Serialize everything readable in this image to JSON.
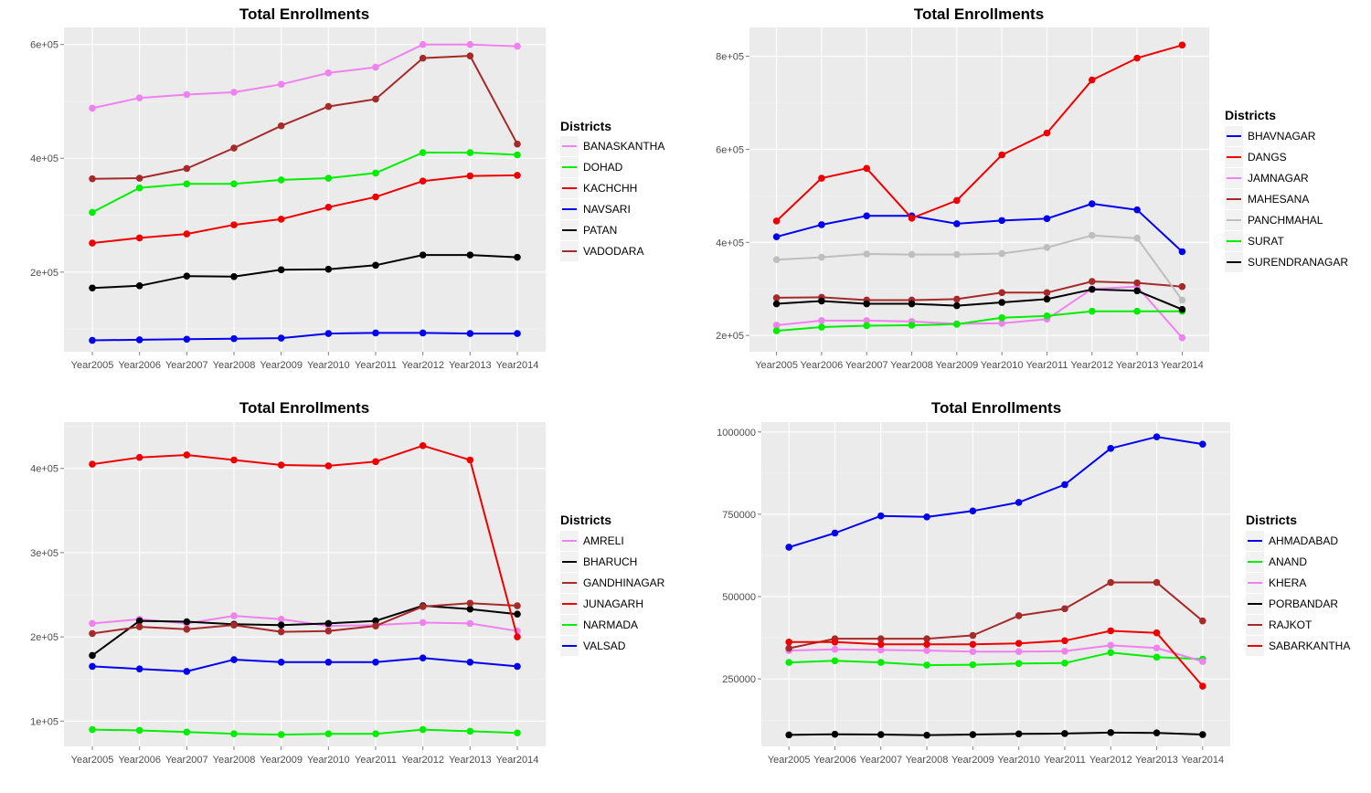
{
  "legend_title": "Districts",
  "chart_data": [
    {
      "type": "line",
      "title": "Total Enrollments",
      "x": [
        "Year2005",
        "Year2006",
        "Year2007",
        "Year2008",
        "Year2009",
        "Year2010",
        "Year2011",
        "Year2012",
        "Year2013",
        "Year2014"
      ],
      "ylim": [
        60000,
        630000
      ],
      "yticks": [
        200000,
        400000,
        600000
      ],
      "ytick_labels": [
        "2e+05",
        "4e+05",
        "6e+05"
      ],
      "series": [
        {
          "name": "BANASKANTHA",
          "color": "#ee82ee",
          "values": [
            488000,
            506000,
            512000,
            516000,
            530000,
            550000,
            560000,
            600000,
            600000,
            597000
          ]
        },
        {
          "name": "DOHAD",
          "color": "#00ee00",
          "values": [
            305000,
            348000,
            355000,
            355000,
            362000,
            365000,
            374000,
            410000,
            410000,
            406000
          ]
        },
        {
          "name": "KACHCHH",
          "color": "#ee0000",
          "values": [
            251000,
            260000,
            267000,
            283000,
            293000,
            314000,
            332000,
            360000,
            369000,
            370000
          ]
        },
        {
          "name": "NAVSARI",
          "color": "#0000ee",
          "values": [
            80000,
            81000,
            82000,
            83000,
            84000,
            92000,
            93000,
            93000,
            92000,
            92000
          ]
        },
        {
          "name": "PATAN",
          "color": "#000000",
          "values": [
            172000,
            176000,
            193000,
            192000,
            204000,
            205000,
            212000,
            230000,
            230000,
            226000
          ]
        },
        {
          "name": "VADODARA",
          "color": "#a52a2a",
          "values": [
            364000,
            365000,
            382000,
            418000,
            457000,
            491000,
            504000,
            576000,
            580000,
            425000
          ]
        }
      ]
    },
    {
      "type": "line",
      "title": "Total Enrollments",
      "x": [
        "Year2005",
        "Year2006",
        "Year2007",
        "Year2008",
        "Year2009",
        "Year2010",
        "Year2011",
        "Year2012",
        "Year2013",
        "Year2014"
      ],
      "ylim": [
        165000,
        862000
      ],
      "yticks": [
        200000,
        400000,
        600000,
        800000
      ],
      "ytick_labels": [
        "2e+05",
        "4e+05",
        "6e+05",
        "8e+05"
      ],
      "series": [
        {
          "name": "BHAVNAGAR",
          "color": "#0000ee",
          "values": [
            412000,
            438000,
            457000,
            457000,
            440000,
            447000,
            451000,
            483000,
            470000,
            380000
          ]
        },
        {
          "name": "DANGS",
          "color": "#ee0000",
          "values": [
            446000,
            538000,
            559000,
            452000,
            490000,
            588000,
            635000,
            749000,
            796000,
            824000
          ]
        },
        {
          "name": "JAMNAGAR",
          "color": "#ee82ee",
          "values": [
            222000,
            232000,
            232000,
            230000,
            225000,
            226000,
            235000,
            300000,
            305000,
            195000
          ]
        },
        {
          "name": "MAHESANA",
          "color": "#a52a2a",
          "values": [
            281000,
            282000,
            276000,
            276000,
            278000,
            292000,
            292000,
            316000,
            313000,
            305000
          ]
        },
        {
          "name": "PANCHMAHAL",
          "color": "#bebebe",
          "values": [
            363000,
            368000,
            375000,
            374000,
            374000,
            376000,
            389000,
            415000,
            409000,
            276000
          ]
        },
        {
          "name": "SURAT",
          "color": "#00ee00",
          "values": [
            210000,
            218000,
            221000,
            222000,
            224000,
            238000,
            242000,
            252000,
            252000,
            252000
          ]
        },
        {
          "name": "SURENDRANAGAR",
          "color": "#000000",
          "values": [
            268000,
            274000,
            268000,
            268000,
            264000,
            271000,
            278000,
            299000,
            296000,
            256000
          ]
        }
      ]
    },
    {
      "type": "line",
      "title": "Total Enrollments",
      "x": [
        "Year2005",
        "Year2006",
        "Year2007",
        "Year2008",
        "Year2009",
        "Year2010",
        "Year2011",
        "Year2012",
        "Year2013",
        "Year2014"
      ],
      "ylim": [
        70000,
        455000
      ],
      "yticks": [
        100000,
        200000,
        300000,
        400000
      ],
      "ytick_labels": [
        "1e+05",
        "2e+05",
        "3e+05",
        "4e+05"
      ],
      "series": [
        {
          "name": "AMRELI",
          "color": "#ee82ee",
          "values": [
            216000,
            221000,
            216000,
            225000,
            221000,
            213000,
            214000,
            217000,
            216000,
            207000
          ]
        },
        {
          "name": "BHARUCH",
          "color": "#000000",
          "values": [
            178000,
            219000,
            218000,
            215000,
            214000,
            216000,
            219000,
            237000,
            233000,
            227000
          ]
        },
        {
          "name": "GANDHINAGAR",
          "color": "#a52a2a",
          "values": [
            204000,
            212000,
            209000,
            214000,
            206000,
            207000,
            213000,
            236000,
            240000,
            237000
          ]
        },
        {
          "name": "JUNAGARH",
          "color": "#ee0000",
          "values": [
            405000,
            413000,
            416000,
            410000,
            404000,
            403000,
            408000,
            427000,
            410000,
            200000
          ]
        },
        {
          "name": "NARMADA",
          "color": "#00ee00",
          "values": [
            90000,
            89000,
            87000,
            85000,
            84000,
            85000,
            85000,
            90000,
            88000,
            86000
          ]
        },
        {
          "name": "VALSAD",
          "color": "#0000ee",
          "values": [
            165000,
            162000,
            159000,
            173000,
            170000,
            170000,
            170000,
            175000,
            170000,
            165000
          ]
        }
      ]
    },
    {
      "type": "line",
      "title": "Total Enrollments",
      "x": [
        "Year2005",
        "Year2006",
        "Year2007",
        "Year2008",
        "Year2009",
        "Year2010",
        "Year2011",
        "Year2012",
        "Year2013",
        "Year2014"
      ],
      "ylim": [
        45000,
        1030000
      ],
      "yticks": [
        250000,
        500000,
        750000,
        1000000
      ],
      "ytick_labels": [
        "250000",
        "500000",
        "750000",
        "1000000"
      ],
      "series": [
        {
          "name": "AHMADABAD",
          "color": "#0000ee",
          "values": [
            650000,
            693000,
            745000,
            742000,
            760000,
            786000,
            840000,
            950000,
            985000,
            963000
          ]
        },
        {
          "name": "ANAND",
          "color": "#00ee00",
          "values": [
            300000,
            305000,
            300000,
            292000,
            293000,
            297000,
            298000,
            330000,
            316000,
            310000
          ]
        },
        {
          "name": "KHERA",
          "color": "#ee82ee",
          "values": [
            336000,
            340000,
            338000,
            336000,
            333000,
            333000,
            334000,
            352000,
            344000,
            303000
          ]
        },
        {
          "name": "PORBANDAR",
          "color": "#000000",
          "values": [
            80000,
            82000,
            81000,
            79000,
            81000,
            83000,
            84000,
            87000,
            86000,
            81000
          ]
        },
        {
          "name": "RAJKOT",
          "color": "#a52a2a",
          "values": [
            343000,
            372000,
            372000,
            372000,
            382000,
            442000,
            463000,
            543000,
            543000,
            426000
          ]
        },
        {
          "name": "SABARKANTHA",
          "color": "#ee0000",
          "values": [
            362000,
            362000,
            355000,
            355000,
            355000,
            358000,
            366000,
            396000,
            390000,
            228000
          ]
        }
      ]
    }
  ]
}
